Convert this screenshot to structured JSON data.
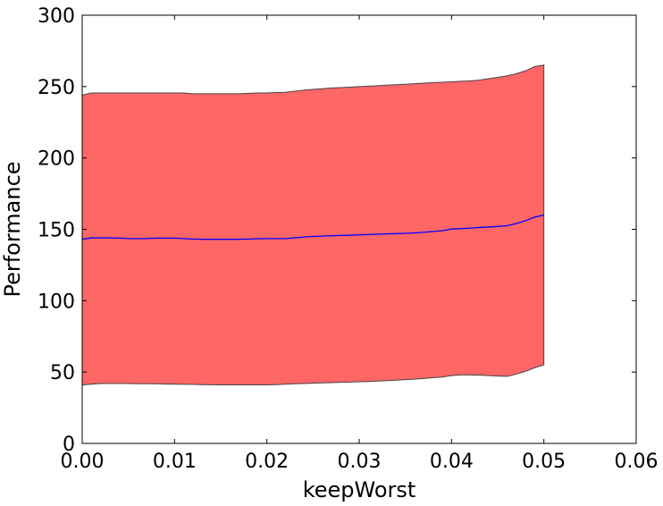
{
  "chart_data": {
    "type": "area",
    "title": "",
    "xlabel": "keepWorst",
    "ylabel": "Performance",
    "xlim": [
      0.0,
      0.06
    ],
    "ylim": [
      0,
      300
    ],
    "x_ticks": [
      0.0,
      0.01,
      0.02,
      0.03,
      0.04,
      0.05,
      0.06
    ],
    "x_tick_labels": [
      "0.00",
      "0.01",
      "0.02",
      "0.03",
      "0.04",
      "0.05",
      "0.06"
    ],
    "y_ticks": [
      0,
      50,
      100,
      150,
      200,
      250,
      300
    ],
    "y_tick_labels": [
      "0",
      "50",
      "100",
      "150",
      "200",
      "250",
      "300"
    ],
    "grid": false,
    "legend": "none",
    "series": [
      {
        "x": [
          0.0,
          0.001,
          0.002,
          0.003,
          0.004,
          0.005,
          0.006,
          0.007,
          0.008,
          0.009,
          0.01,
          0.011,
          0.012,
          0.013,
          0.014,
          0.015,
          0.016,
          0.017,
          0.018,
          0.019,
          0.02,
          0.021,
          0.022,
          0.023,
          0.024,
          0.025,
          0.026,
          0.027,
          0.028,
          0.029,
          0.03,
          0.031,
          0.032,
          0.033,
          0.034,
          0.035,
          0.036,
          0.037,
          0.038,
          0.039,
          0.04,
          0.041,
          0.042,
          0.043,
          0.044,
          0.045,
          0.046,
          0.047,
          0.048,
          0.049,
          0.05
        ],
        "mean": [
          143,
          144,
          144,
          144,
          143.8,
          143.5,
          143.5,
          143.5,
          143.8,
          143.8,
          143.8,
          143.5,
          143.2,
          143,
          143,
          143,
          143,
          143,
          143.2,
          143.4,
          143.5,
          143.5,
          143.5,
          144,
          144.6,
          145,
          145.2,
          145.5,
          145.7,
          145.9,
          146.1,
          146.3,
          146.6,
          146.8,
          147,
          147.2,
          147.5,
          147.9,
          148.5,
          149,
          150.2,
          150.5,
          150.8,
          151.3,
          151.6,
          152,
          152.5,
          154,
          156,
          158.5,
          160
        ],
        "upper": [
          244,
          245.5,
          245.5,
          245.5,
          245.5,
          245.5,
          245.5,
          245.5,
          245.5,
          245.5,
          245.5,
          245.5,
          245,
          245,
          245,
          245,
          245,
          245,
          245.3,
          245.5,
          245.5,
          245.8,
          246,
          246.8,
          247.5,
          248,
          248.5,
          249,
          249.3,
          249.6,
          250,
          250.3,
          250.6,
          251,
          251.3,
          251.6,
          252,
          252.4,
          252.8,
          253,
          253.3,
          253.7,
          254,
          254.5,
          255.5,
          256.5,
          257.5,
          259,
          261,
          264,
          265
        ],
        "lower": [
          41,
          41.5,
          42,
          42,
          42,
          42,
          41.8,
          41.8,
          41.8,
          41.6,
          41.5,
          41.4,
          41.3,
          41.2,
          41.1,
          41,
          41,
          41,
          41,
          41,
          41,
          41.2,
          41.5,
          41.8,
          42,
          42.2,
          42.4,
          42.6,
          42.8,
          43,
          43.2,
          43.4,
          43.7,
          44,
          44.3,
          44.7,
          45,
          45.5,
          46,
          46.5,
          47.5,
          48,
          48,
          47.8,
          47.5,
          47.2,
          47,
          48.5,
          50.5,
          53,
          55
        ]
      }
    ],
    "colors": {
      "band_fill": "#ff6666",
      "band_edge": "#444444",
      "mean_line": "#0000ff",
      "axes": "#000000"
    }
  }
}
